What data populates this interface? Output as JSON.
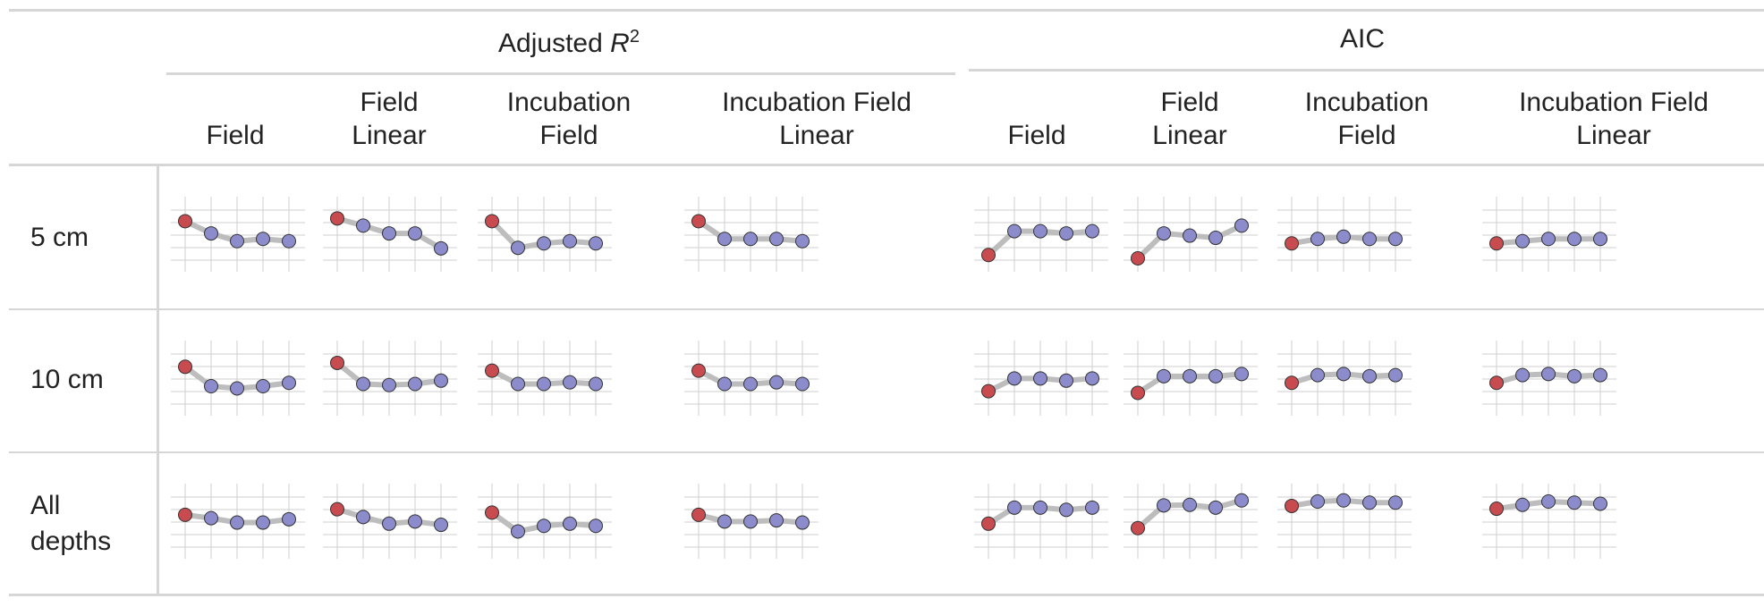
{
  "table": {
    "groups": [
      {
        "title": "Adjusted",
        "sym": "R",
        "sup": "2"
      },
      {
        "title": "AIC",
        "sym": "",
        "sup": ""
      }
    ],
    "columns": [
      {
        "line1": "",
        "line2": "Field"
      },
      {
        "line1": "Field",
        "line2": "Linear"
      },
      {
        "line1": "Incubation",
        "line2": "Field"
      },
      {
        "line1": "Incubation Field",
        "line2": "Linear"
      },
      {
        "line1": "",
        "line2": "Field"
      },
      {
        "line1": "Field",
        "line2": "Linear"
      },
      {
        "line1": "Incubation",
        "line2": "Field"
      },
      {
        "line1": "Incubation Field",
        "line2": "Linear"
      }
    ],
    "rows": [
      {
        "line1": "5 cm",
        "line2": ""
      },
      {
        "line1": "10 cm",
        "line2": ""
      },
      {
        "line1": "All",
        "line2": "depths"
      }
    ]
  },
  "colors": {
    "first_point": "#c84b4f",
    "other_points": "#8c8ccc",
    "line": "#bdbdbd",
    "grid": "#cfcfcf",
    "rule": "#d6d6d6"
  },
  "chart_data": {
    "type": "line",
    "note_x": [
      1,
      2,
      3,
      4,
      5
    ],
    "cells": [
      [
        [
          0.88,
          0.66,
          0.52,
          0.56,
          0.52
        ],
        [
          0.93,
          0.8,
          0.66,
          0.66,
          0.39
        ],
        [
          0.88,
          0.4,
          0.48,
          0.52,
          0.48
        ],
        [
          0.88,
          0.56,
          0.56,
          0.56,
          0.52
        ],
        [
          0.27,
          0.7,
          0.7,
          0.66,
          0.7
        ],
        [
          0.21,
          0.66,
          0.62,
          0.58,
          0.8
        ],
        [
          0.48,
          0.56,
          0.6,
          0.56,
          0.56
        ],
        [
          0.48,
          0.52,
          0.56,
          0.56,
          0.56
        ]
      ],
      [
        [
          0.85,
          0.5,
          0.46,
          0.5,
          0.56
        ],
        [
          0.92,
          0.54,
          0.52,
          0.54,
          0.6
        ],
        [
          0.78,
          0.54,
          0.54,
          0.57,
          0.54
        ],
        [
          0.78,
          0.54,
          0.54,
          0.57,
          0.54
        ],
        [
          0.41,
          0.64,
          0.64,
          0.6,
          0.64
        ],
        [
          0.38,
          0.68,
          0.68,
          0.68,
          0.72
        ],
        [
          0.56,
          0.7,
          0.72,
          0.68,
          0.7
        ],
        [
          0.56,
          0.7,
          0.72,
          0.68,
          0.7
        ]
      ],
      [
        [
          0.76,
          0.7,
          0.62,
          0.62,
          0.68
        ],
        [
          0.86,
          0.72,
          0.6,
          0.64,
          0.58
        ],
        [
          0.8,
          0.46,
          0.56,
          0.6,
          0.56
        ],
        [
          0.76,
          0.64,
          0.64,
          0.66,
          0.62
        ],
        [
          0.6,
          0.89,
          0.89,
          0.85,
          0.89
        ],
        [
          0.52,
          0.93,
          0.94,
          0.89,
          1.02
        ],
        [
          0.92,
          1.0,
          1.02,
          0.98,
          0.98
        ],
        [
          0.87,
          0.94,
          1.0,
          0.98,
          0.96
        ]
      ]
    ]
  }
}
